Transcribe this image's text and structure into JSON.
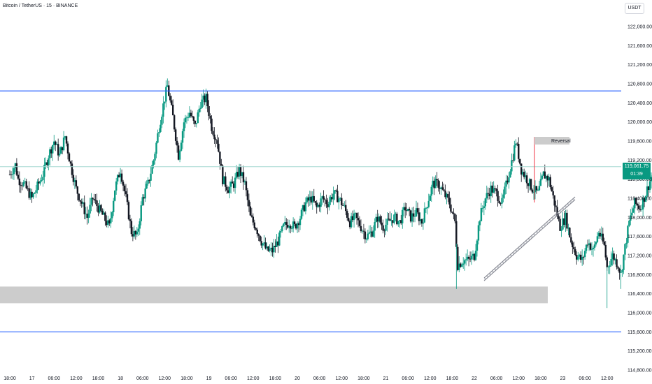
{
  "header": {
    "title": "Bitcoin / TetherUS · 15 · BINANCE",
    "currency_button": "USDT"
  },
  "price_badge": {
    "price": "119,061.75",
    "countdown": "01:39"
  },
  "annotation": {
    "label": "Reversal"
  },
  "colors": {
    "up": "#089981",
    "down": "#131722",
    "level_line": "#2962ff",
    "zone": "#cccccc",
    "current_price_line": "#a5d8d2",
    "reversal_marker": "#f23645"
  },
  "chart_data": {
    "type": "candlestick",
    "symbol": "BTCUSDT",
    "interval": "15",
    "exchange": "BINANCE",
    "ylim": [
      114800,
      122400
    ],
    "y_ticks": [
      122000,
      121600,
      121200,
      120800,
      120400,
      120000,
      119600,
      119200,
      118800,
      118400,
      118000,
      117600,
      117200,
      116800,
      116400,
      116000,
      115600,
      115200,
      114800
    ],
    "y_tick_labels": [
      "122,000.00",
      "121,600.00",
      "121,200.00",
      "120,800.00",
      "120,400.00",
      "120,000.00",
      "119,600.00",
      "119,200.00",
      "118,800.00",
      "118,400.00",
      "118,000.00",
      "117,600.00",
      "117,200.00",
      "116,800.00",
      "116,400.00",
      "116,000.00",
      "115,600.00",
      "115,200.00",
      "114,800.00"
    ],
    "x_tick_labels": [
      "18:00",
      "17",
      "06:00",
      "12:00",
      "18:00",
      "18",
      "06:00",
      "12:00",
      "18:00",
      "19",
      "06:00",
      "12:00",
      "18:00",
      "20",
      "06:00",
      "12:00",
      "18:00",
      "21",
      "06:00",
      "12:00",
      "18:00",
      "22",
      "06:00",
      "12:00",
      "18:00",
      "23",
      "06:00",
      "12:00"
    ],
    "horizontal_levels": [
      120650,
      115600
    ],
    "support_zone": [
      116200,
      116550
    ],
    "current_price": 119061.75,
    "trendline": {
      "from": [
        "22 00:00",
        116700
      ],
      "to": [
        "23 00:00",
        118400
      ]
    },
    "path_points": [
      [
        0,
        118900
      ],
      [
        2,
        119100
      ],
      [
        3,
        118800
      ],
      [
        5,
        118700
      ],
      [
        8,
        118400
      ],
      [
        12,
        118900
      ],
      [
        14,
        119300
      ],
      [
        16,
        119600
      ],
      [
        18,
        119300
      ],
      [
        20,
        119700
      ],
      [
        22,
        119100
      ],
      [
        24,
        118600
      ],
      [
        26,
        118300
      ],
      [
        28,
        118000
      ],
      [
        30,
        118400
      ],
      [
        32,
        118200
      ],
      [
        34,
        118000
      ],
      [
        36,
        117800
      ],
      [
        38,
        118600
      ],
      [
        40,
        119000
      ],
      [
        42,
        118400
      ],
      [
        44,
        117700
      ],
      [
        46,
        117600
      ],
      [
        48,
        118400
      ],
      [
        50,
        118700
      ],
      [
        52,
        119200
      ],
      [
        54,
        119900
      ],
      [
        56,
        120500
      ],
      [
        57,
        120750
      ],
      [
        59,
        120100
      ],
      [
        61,
        119300
      ],
      [
        63,
        120000
      ],
      [
        65,
        120200
      ],
      [
        67,
        119900
      ],
      [
        69,
        120400
      ],
      [
        71,
        120500
      ],
      [
        73,
        119900
      ],
      [
        75,
        119600
      ],
      [
        77,
        118800
      ],
      [
        79,
        118600
      ],
      [
        81,
        118700
      ],
      [
        83,
        119000
      ],
      [
        85,
        118700
      ],
      [
        87,
        118000
      ],
      [
        89,
        117800
      ],
      [
        91,
        117500
      ],
      [
        93,
        117300
      ],
      [
        95,
        117300
      ],
      [
        97,
        117500
      ],
      [
        99,
        117800
      ],
      [
        101,
        117900
      ],
      [
        103,
        117800
      ],
      [
        105,
        118000
      ],
      [
        107,
        118300
      ],
      [
        109,
        118400
      ],
      [
        111,
        118200
      ],
      [
        113,
        118400
      ],
      [
        115,
        118300
      ],
      [
        117,
        118500
      ],
      [
        119,
        118400
      ],
      [
        121,
        118200
      ],
      [
        123,
        117900
      ],
      [
        125,
        118000
      ],
      [
        127,
        117800
      ],
      [
        129,
        117600
      ],
      [
        131,
        117700
      ],
      [
        133,
        118000
      ],
      [
        135,
        117800
      ],
      [
        137,
        117900
      ],
      [
        139,
        118000
      ],
      [
        141,
        117900
      ],
      [
        143,
        118200
      ],
      [
        145,
        118000
      ],
      [
        147,
        118100
      ],
      [
        149,
        117900
      ],
      [
        151,
        118300
      ],
      [
        153,
        118700
      ],
      [
        155,
        118700
      ],
      [
        157,
        118500
      ],
      [
        159,
        118300
      ],
      [
        161,
        117900
      ],
      [
        162,
        117000
      ],
      [
        164,
        117100
      ],
      [
        166,
        117100
      ],
      [
        168,
        117200
      ],
      [
        170,
        118000
      ],
      [
        172,
        118400
      ],
      [
        174,
        118600
      ],
      [
        176,
        118500
      ],
      [
        178,
        118300
      ],
      [
        180,
        118800
      ],
      [
        182,
        119300
      ],
      [
        183,
        119600
      ],
      [
        185,
        119000
      ],
      [
        187,
        118800
      ],
      [
        189,
        118600
      ],
      [
        191,
        118500
      ],
      [
        193,
        118900
      ],
      [
        195,
        118800
      ],
      [
        197,
        118300
      ],
      [
        199,
        117800
      ],
      [
        201,
        118000
      ],
      [
        203,
        117500
      ],
      [
        205,
        117200
      ],
      [
        207,
        117100
      ],
      [
        209,
        117500
      ],
      [
        211,
        117300
      ],
      [
        213,
        117700
      ],
      [
        215,
        117400
      ],
      [
        216,
        116950
      ],
      [
        218,
        117200
      ],
      [
        220,
        117000
      ],
      [
        221,
        116800
      ],
      [
        222,
        117200
      ],
      [
        224,
        117900
      ],
      [
        226,
        118300
      ],
      [
        228,
        118200
      ],
      [
        230,
        118500
      ],
      [
        232,
        118850
      ],
      [
        234,
        119000
      ]
    ]
  }
}
